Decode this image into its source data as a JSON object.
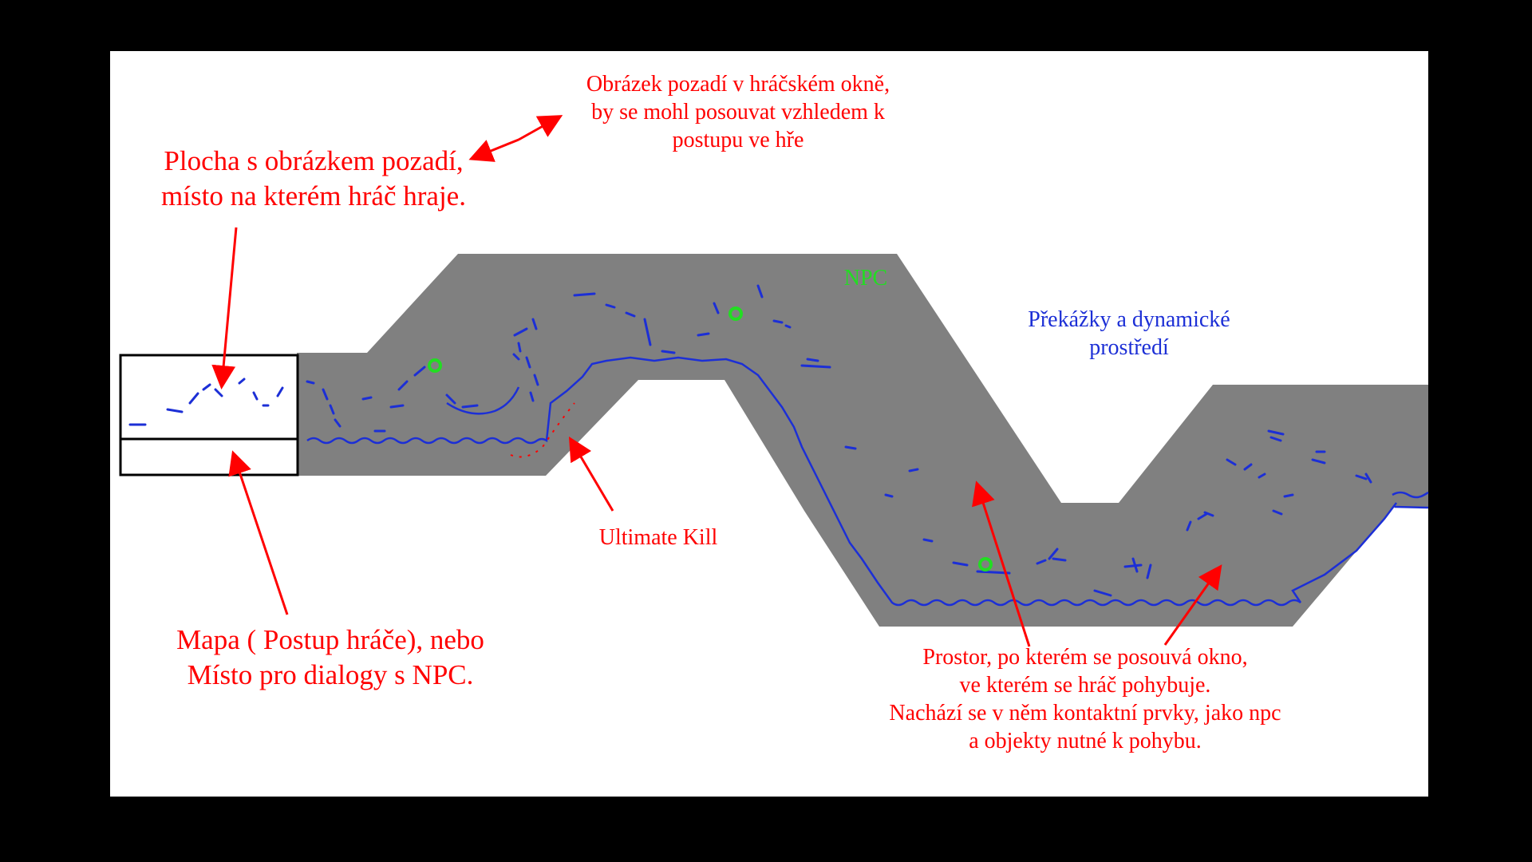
{
  "colors": {
    "background": "#000000",
    "slide": "#ffffff",
    "terrain": "#808080",
    "annotation": "#ff0000",
    "dynamic_elements": "#1c2fd6",
    "npc": "#22dd22"
  },
  "labels": {
    "play_area": "Plocha s obrázkem pozadí,\nmísto na kterém hráč hraje.",
    "background_image": "Obrázek pozadí v hráčském okně,\nby se mohl posouvat vzhledem k\npostupu ve hře",
    "npc": "NPC",
    "obstacles": "Překážky a dynamické\nprostředí",
    "ultimate_kill": "Ultimate Kill",
    "map_panel": "Mapa ( Postup hráče), nebo\nMísto pro dialogy s NPC.",
    "movement_space": "Prostor, po kterém se posouvá okno,\nve kterém se hráč pohybuje.\nNachází se v něm kontaktní prvky, jako npc\na objekty nutné k pohybu."
  }
}
